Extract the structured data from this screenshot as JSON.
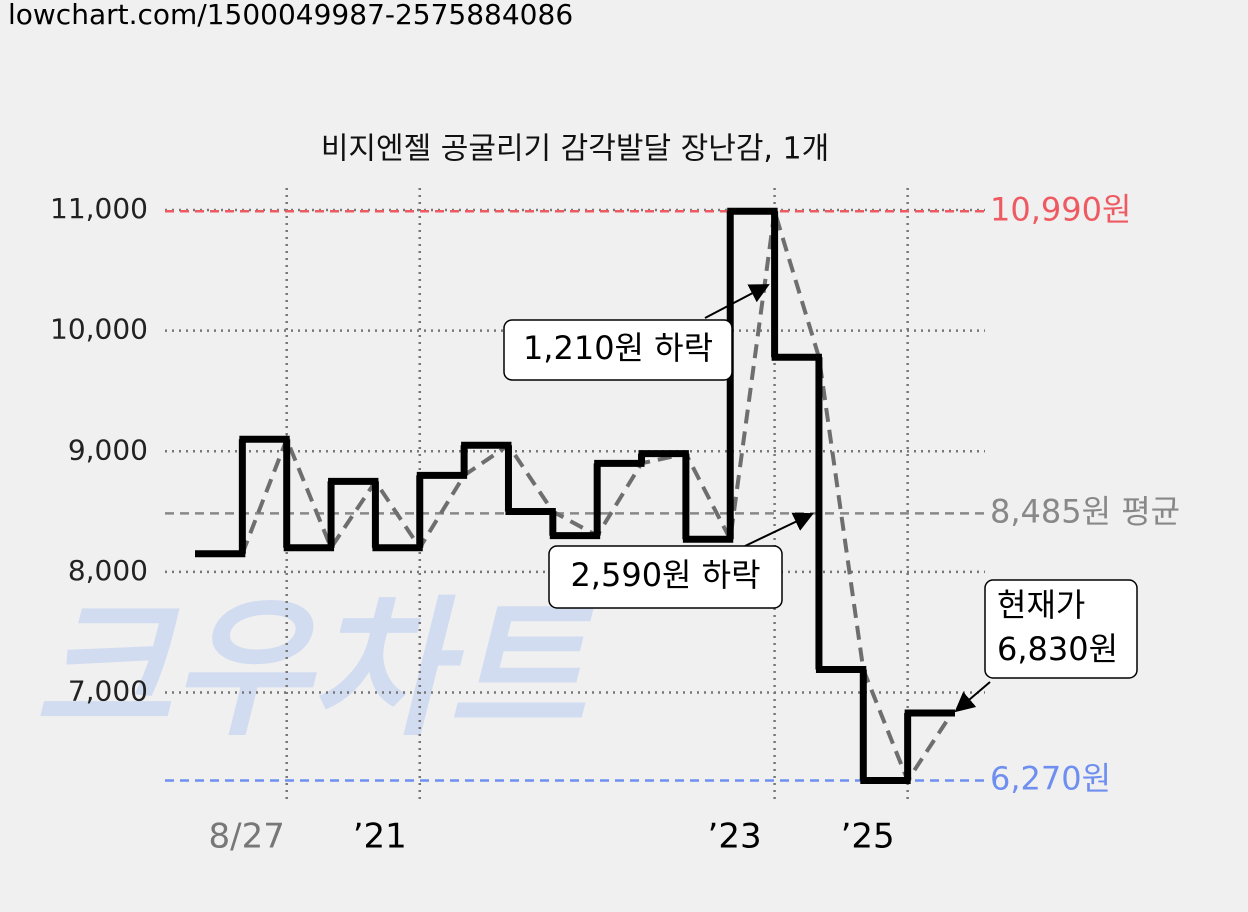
{
  "url": "lowchart.com/1500049987-2575884086",
  "chart_data": {
    "type": "step",
    "title": "비지엔젤 공굴리기 감각발달 장난감, 1개",
    "watermark": "크우차트",
    "values": [
      8150,
      9100,
      8200,
      8750,
      8200,
      8800,
      9050,
      8500,
      8300,
      8900,
      8980,
      8270,
      10990,
      9780,
      7190,
      6270,
      6830
    ],
    "color": "#000000",
    "trend_color": "#6e6e6e",
    "ylim": [
      6100,
      11100
    ],
    "yticks": [
      {
        "value": 7000,
        "label": "7,000"
      },
      {
        "value": 8000,
        "label": "8,000"
      },
      {
        "value": 9000,
        "label": "9,000"
      },
      {
        "value": 10000,
        "label": "10,000"
      },
      {
        "value": 11000,
        "label": "11,000"
      }
    ],
    "xlim": [
      0,
      17
    ],
    "xticks": [
      {
        "value": 2,
        "label": "8/27",
        "color": "#777777"
      },
      {
        "value": 5,
        "label": "’21",
        "color": "#000000"
      },
      {
        "value": 13,
        "label": "’23",
        "color": "#000000"
      },
      {
        "value": 16,
        "label": "’25",
        "color": "#000000"
      }
    ],
    "grid": true,
    "reference_lines": [
      {
        "value": 10990,
        "label": "10,990원",
        "color": "#ee5a62"
      },
      {
        "value": 8485,
        "label": "8,485원 평균",
        "color": "#888888"
      },
      {
        "value": 6270,
        "label": "6,270원",
        "color": "#6f8ff0"
      }
    ],
    "annotations": [
      {
        "lines": [
          "1,210원 하락"
        ]
      },
      {
        "lines": [
          "2,590원 하락"
        ]
      },
      {
        "lines": [
          "현재가",
          "6,830원"
        ]
      }
    ]
  }
}
